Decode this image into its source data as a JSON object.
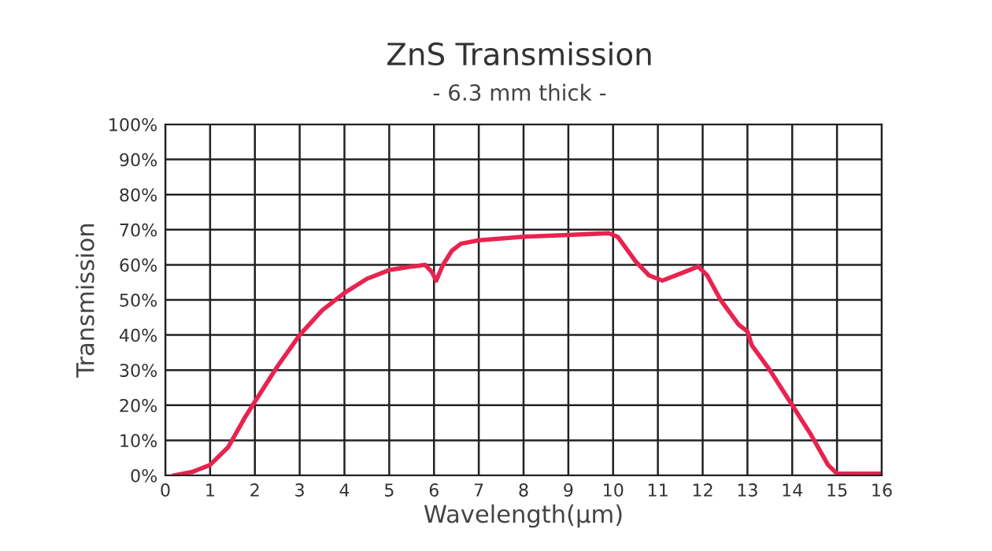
{
  "chart_data": {
    "type": "line",
    "title": "ZnS Transmission",
    "subtitle": "- 6.3 mm thick -",
    "xlabel": "Wavelength(µm)",
    "ylabel": "Transmission",
    "series": [
      {
        "color": "#e8234f",
        "x": [
          0.2,
          0.6,
          1,
          1.4,
          1.8,
          2,
          2.5,
          3,
          3.5,
          4,
          4.5,
          5,
          5.5,
          5.8,
          5.95,
          6.05,
          6.2,
          6.4,
          6.6,
          7,
          8,
          9,
          9.9,
          10.1,
          10.5,
          10.8,
          11.1,
          11.5,
          11.9,
          12.1,
          12.4,
          12.8,
          13,
          13.1,
          13.5,
          14,
          14.4,
          14.8,
          15,
          16
        ],
        "values": [
          0,
          1,
          3,
          8,
          17,
          21,
          31,
          40,
          47,
          52,
          56,
          58.5,
          59.5,
          60,
          58,
          55.5,
          60,
          64,
          66,
          67,
          68,
          68.5,
          69,
          68,
          61,
          57,
          55.5,
          57.5,
          59.5,
          57,
          50,
          43,
          41,
          37,
          30,
          20,
          12,
          3,
          0.5,
          0.5
        ]
      }
    ],
    "xlim": [
      0,
      16
    ],
    "xticks": [
      0,
      1,
      2,
      3,
      4,
      5,
      6,
      7,
      8,
      9,
      10,
      11,
      12,
      13,
      14,
      15,
      16
    ],
    "ylim": [
      0,
      100
    ],
    "yticks": [
      {
        "value": 0,
        "label": "0%"
      },
      {
        "value": 10,
        "label": "10%"
      },
      {
        "value": 20,
        "label": "20%"
      },
      {
        "value": 30,
        "label": "30%"
      },
      {
        "value": 40,
        "label": "40%"
      },
      {
        "value": 50,
        "label": "50%"
      },
      {
        "value": 60,
        "label": "60%"
      },
      {
        "value": 70,
        "label": "70%"
      },
      {
        "value": 80,
        "label": "80%"
      },
      {
        "value": 90,
        "label": "90%"
      },
      {
        "value": 100,
        "label": "100%"
      }
    ],
    "grid": true,
    "marker": "none",
    "line_style": "solid"
  }
}
